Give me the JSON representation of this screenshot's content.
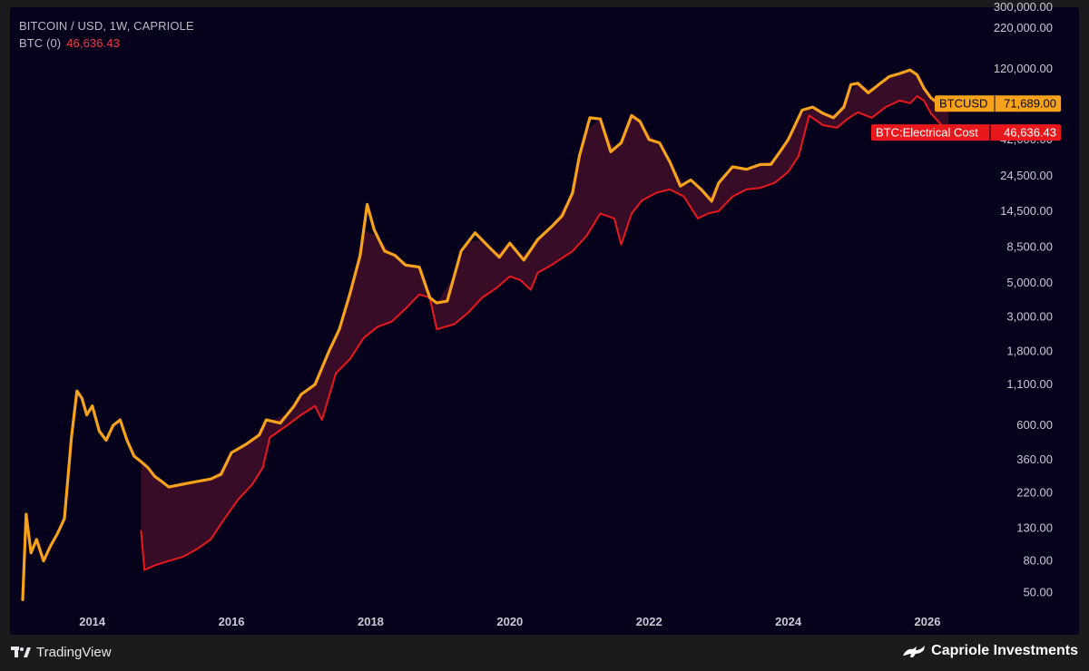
{
  "header": {
    "title": "BITCOIN / USD, 1W, CAPRIOLE",
    "indicator_label": "BTC (0)",
    "indicator_value": "46,636.43"
  },
  "footer": {
    "left_brand": "TradingView",
    "left_brand_icon": "tradingview-logo-icon",
    "right_brand": "Capriole Investments",
    "right_brand_icon": "bull-logo-icon"
  },
  "colors": {
    "background": "#06021c",
    "price_line": "#f7a21b",
    "cost_line": "#e8181d",
    "fill_band": "#4a0f2a",
    "axis_text": "#c9c9d2"
  },
  "chart_data": {
    "type": "line",
    "title": "BITCOIN / USD, 1W, CAPRIOLE",
    "y_scale": "log",
    "ylim": [
      40,
      300000
    ],
    "xlim": [
      2013.0,
      2026.9
    ],
    "y_ticks": [
      {
        "value": 50,
        "label": "50.00"
      },
      {
        "value": 80,
        "label": "80.00"
      },
      {
        "value": 130,
        "label": "130.00"
      },
      {
        "value": 220,
        "label": "220.00"
      },
      {
        "value": 360,
        "label": "360.00"
      },
      {
        "value": 600,
        "label": "600.00"
      },
      {
        "value": 1100,
        "label": "1,100.00"
      },
      {
        "value": 1800,
        "label": "1,800.00"
      },
      {
        "value": 3000,
        "label": "3,000.00"
      },
      {
        "value": 5000,
        "label": "5,000.00"
      },
      {
        "value": 8500,
        "label": "8,500.00"
      },
      {
        "value": 14500,
        "label": "14,500.00"
      },
      {
        "value": 24500,
        "label": "24,500.00"
      },
      {
        "value": 42000,
        "label": "42,000.00"
      },
      {
        "value": 120000,
        "label": "120,000.00"
      },
      {
        "value": 220000,
        "label": "220,000.00"
      },
      {
        "value": 300000,
        "label": "300,000.00"
      }
    ],
    "x_ticks": [
      {
        "value": 2014,
        "label": "2014"
      },
      {
        "value": 2016,
        "label": "2016"
      },
      {
        "value": 2018,
        "label": "2018"
      },
      {
        "value": 2020,
        "label": "2020"
      },
      {
        "value": 2022,
        "label": "2022"
      },
      {
        "value": 2024,
        "label": "2024"
      },
      {
        "value": 2026,
        "label": "2026"
      }
    ],
    "grid": false,
    "series": [
      {
        "name": "BTCUSD",
        "last_value_label": "71,689.00",
        "color": "#f7a21b",
        "x": [
          2013.0,
          2013.05,
          2013.12,
          2013.2,
          2013.3,
          2013.4,
          2013.5,
          2013.6,
          2013.7,
          2013.78,
          2013.85,
          2013.92,
          2014.0,
          2014.1,
          2014.2,
          2014.3,
          2014.4,
          2014.5,
          2014.6,
          2014.7,
          2014.8,
          2014.9,
          2015.0,
          2015.1,
          2015.3,
          2015.5,
          2015.7,
          2015.85,
          2016.0,
          2016.2,
          2016.4,
          2016.5,
          2016.7,
          2016.9,
          2017.0,
          2017.2,
          2017.4,
          2017.55,
          2017.7,
          2017.85,
          2017.95,
          2018.05,
          2018.2,
          2018.35,
          2018.5,
          2018.7,
          2018.85,
          2018.95,
          2019.1,
          2019.3,
          2019.5,
          2019.7,
          2019.85,
          2020.0,
          2020.2,
          2020.4,
          2020.6,
          2020.75,
          2020.9,
          2021.0,
          2021.15,
          2021.3,
          2021.45,
          2021.6,
          2021.75,
          2021.87,
          2022.0,
          2022.15,
          2022.3,
          2022.45,
          2022.6,
          2022.75,
          2022.9,
          2023.0,
          2023.2,
          2023.4,
          2023.6,
          2023.75,
          2023.9,
          2024.0,
          2024.2,
          2024.35,
          2024.5,
          2024.65,
          2024.8,
          2024.9,
          2025.0,
          2025.15,
          2025.3,
          2025.45,
          2025.6,
          2025.75,
          2025.85,
          2025.95,
          2026.05,
          2026.15,
          2026.3
        ],
        "y": [
          45,
          160,
          90,
          110,
          80,
          100,
          120,
          150,
          500,
          1000,
          900,
          700,
          800,
          550,
          480,
          600,
          650,
          480,
          380,
          350,
          320,
          280,
          260,
          240,
          250,
          260,
          270,
          290,
          400,
          450,
          520,
          650,
          620,
          800,
          950,
          1100,
          1800,
          2500,
          4200,
          7500,
          16000,
          11000,
          8000,
          7500,
          6500,
          6300,
          4000,
          3700,
          3800,
          8000,
          10500,
          8500,
          7300,
          9000,
          7000,
          9500,
          11500,
          13500,
          19000,
          33000,
          58000,
          57000,
          35000,
          40000,
          60000,
          55000,
          42000,
          40000,
          30000,
          21000,
          23000,
          20000,
          16800,
          22000,
          28000,
          27000,
          29000,
          29000,
          36000,
          42000,
          65000,
          68000,
          62000,
          58000,
          68000,
          95000,
          97000,
          84000,
          95000,
          107000,
          112000,
          118000,
          110000,
          90000,
          78000,
          72000,
          71689
        ]
      },
      {
        "name": "BTC:Electrical Cost",
        "last_value_label": "46,636.43",
        "color": "#e8181d",
        "x": [
          2014.7,
          2014.75,
          2014.9,
          2015.1,
          2015.3,
          2015.5,
          2015.7,
          2015.9,
          2016.1,
          2016.3,
          2016.45,
          2016.55,
          2016.8,
          2017.0,
          2017.2,
          2017.3,
          2017.5,
          2017.7,
          2017.9,
          2018.1,
          2018.3,
          2018.5,
          2018.7,
          2018.85,
          2018.95,
          2019.2,
          2019.4,
          2019.6,
          2019.8,
          2020.0,
          2020.15,
          2020.3,
          2020.4,
          2020.6,
          2020.9,
          2021.1,
          2021.3,
          2021.5,
          2021.6,
          2021.75,
          2021.9,
          2022.1,
          2022.3,
          2022.5,
          2022.7,
          2022.85,
          2023.0,
          2023.2,
          2023.4,
          2023.6,
          2023.8,
          2024.0,
          2024.15,
          2024.3,
          2024.5,
          2024.7,
          2024.85,
          2025.0,
          2025.2,
          2025.4,
          2025.6,
          2025.75,
          2025.85,
          2025.95,
          2026.05,
          2026.3
        ],
        "y": [
          125,
          70,
          75,
          80,
          85,
          95,
          110,
          150,
          200,
          250,
          320,
          500,
          600,
          700,
          800,
          650,
          1300,
          1600,
          2200,
          2600,
          2800,
          3400,
          4200,
          4000,
          2500,
          2700,
          3200,
          4000,
          4600,
          5500,
          5200,
          4500,
          5800,
          6500,
          8000,
          10000,
          14000,
          13000,
          8800,
          14000,
          17000,
          19000,
          20000,
          18000,
          13000,
          14000,
          14500,
          18000,
          20000,
          20500,
          22000,
          26000,
          33000,
          60000,
          52000,
          50000,
          57000,
          63000,
          58000,
          68000,
          75000,
          72000,
          80000,
          75000,
          62000,
          46636
        ]
      }
    ],
    "band_between_series": true
  }
}
